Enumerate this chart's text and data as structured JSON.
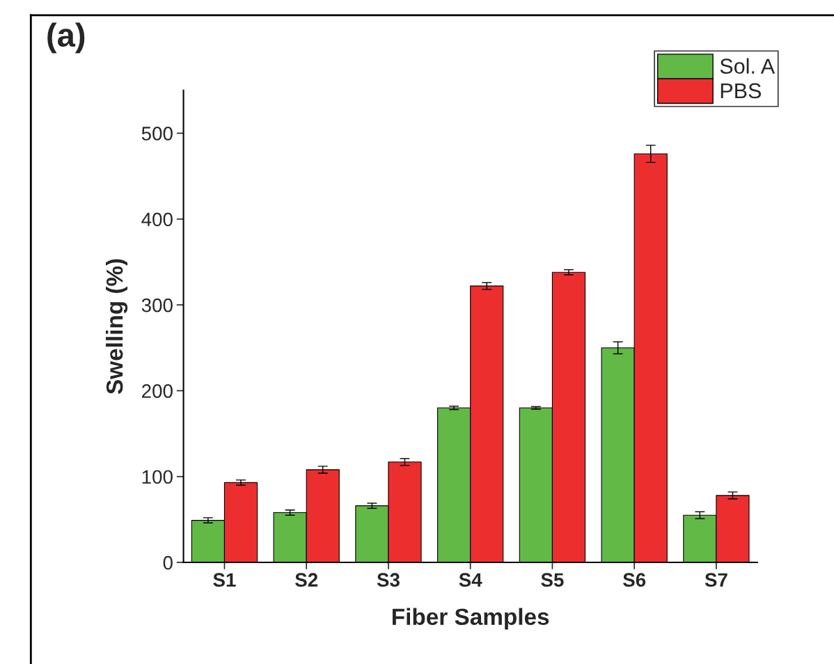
{
  "chart_data": {
    "type": "bar",
    "xlabel": "Fiber Samples",
    "ylabel": "Swelling (%)",
    "annotations": [
      "(a)"
    ],
    "categories": [
      "S1",
      "S2",
      "S3",
      "S4",
      "S5",
      "S6",
      "S7"
    ],
    "series": [
      {
        "name": "Sol. A",
        "color": "#62b946",
        "values": [
          49,
          58,
          66,
          180,
          180,
          250,
          55
        ],
        "errors": [
          3,
          3,
          3,
          2,
          1.5,
          7,
          4
        ]
      },
      {
        "name": "PBS",
        "color": "#ed2e2e",
        "values": [
          93,
          108,
          117,
          322,
          338,
          476,
          78
        ],
        "errors": [
          3,
          4,
          4,
          4,
          3,
          10,
          4
        ]
      }
    ],
    "ylim": [
      0,
      550
    ],
    "yticks": [
      0,
      100,
      200,
      300,
      400,
      500
    ],
    "grid": false,
    "legend": "top right"
  }
}
